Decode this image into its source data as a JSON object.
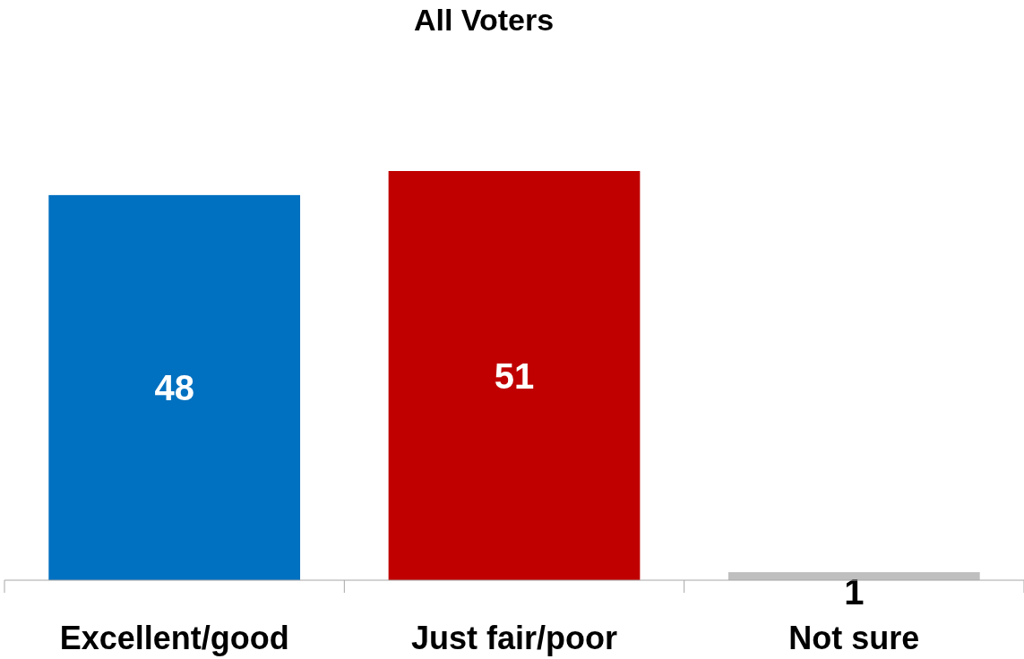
{
  "chart_data": {
    "type": "bar",
    "title": "All Voters",
    "categories": [
      "Excellent/good",
      "Just fair/poor",
      "Not sure"
    ],
    "values": [
      48,
      51,
      1
    ],
    "colors": [
      "#0070c0",
      "#c00000",
      "#bfbfbf"
    ],
    "data_labels": true
  }
}
